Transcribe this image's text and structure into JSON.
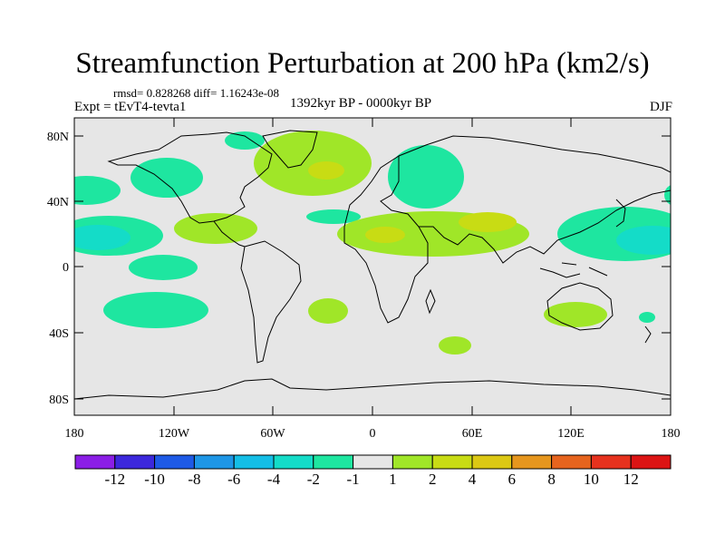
{
  "title": "Streamfunction Perturbation at 200 hPa (km2/s)",
  "stats_line": "rmsd= 0.828268 diff= 1.16243e-08",
  "left_label": "Expt = tEvT4-tevta1",
  "center_label": "1392kyr BP - 0000kyr BP",
  "right_label": "DJF",
  "lat_labels": [
    "80N",
    "40N",
    "0",
    "40S",
    "80S"
  ],
  "lon_labels": [
    "180",
    "120W",
    "60W",
    "0",
    "60E",
    "120E",
    "180"
  ],
  "colorbar": {
    "labels": [
      "-12",
      "-10",
      "-8",
      "-6",
      "-4",
      "-2",
      "-1",
      "1",
      "2",
      "4",
      "6",
      "8",
      "10",
      "12"
    ],
    "colors": [
      "#8b1ee6",
      "#3c28dc",
      "#1e5ae6",
      "#1e96e6",
      "#14bee6",
      "#14dcc8",
      "#1ee6a0",
      "#e6e6e6",
      "#a0e628",
      "#c8dc14",
      "#dcc814",
      "#e6961e",
      "#e6641e",
      "#e6321e",
      "#dc1414"
    ]
  },
  "map_colors": {
    "background": "#e6e6e6",
    "land_line": "#000000"
  }
}
